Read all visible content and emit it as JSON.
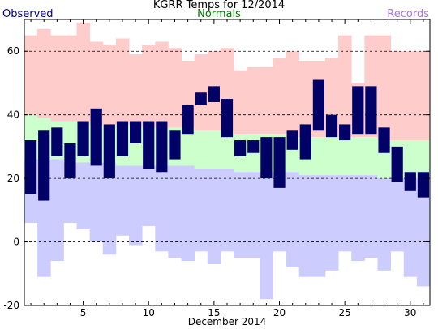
{
  "chart_data": {
    "type": "floating-bar",
    "title": "KGRR Temps for 12/2014",
    "xlabel": "December 2014",
    "ylabel": "",
    "xlim": [
      1,
      31
    ],
    "ylim": [
      -20,
      70
    ],
    "x_ticks": [
      5,
      10,
      15,
      20,
      25,
      30
    ],
    "y_ticks": [
      -20,
      0,
      20,
      40,
      60
    ],
    "grid": "dashed horizontal lines at y ticks",
    "legend": {
      "placement": "top",
      "entries": [
        {
          "label": "Observed",
          "color": "#000080",
          "position": "left"
        },
        {
          "label": "Normals",
          "color": "#007700",
          "position": "center"
        },
        {
          "label": "Records",
          "color": "#aa77dd",
          "position": "right"
        }
      ]
    },
    "days": [
      1,
      2,
      3,
      4,
      5,
      6,
      7,
      8,
      9,
      10,
      11,
      12,
      13,
      14,
      15,
      16,
      17,
      18,
      19,
      20,
      21,
      22,
      23,
      24,
      25,
      26,
      27,
      28,
      29,
      30,
      31
    ],
    "record_high": [
      65,
      67,
      65,
      65,
      69,
      63,
      62,
      64,
      59,
      62,
      63,
      61,
      57,
      59,
      60,
      61,
      54,
      55,
      55,
      58,
      60,
      57,
      57,
      58,
      65,
      50,
      65,
      65,
      60,
      60,
      60
    ],
    "normal_high": [
      40,
      39,
      38,
      38,
      38,
      37,
      37,
      37,
      37,
      36,
      36,
      36,
      36,
      35,
      35,
      35,
      34,
      34,
      34,
      34,
      33,
      33,
      33,
      33,
      33,
      33,
      33,
      32,
      32,
      32,
      32
    ],
    "normal_low": [
      26,
      26,
      26,
      25,
      25,
      25,
      25,
      24,
      24,
      24,
      24,
      24,
      24,
      23,
      23,
      23,
      22,
      22,
      22,
      22,
      22,
      21,
      21,
      21,
      21,
      21,
      21,
      20,
      20,
      20,
      20
    ],
    "record_low": [
      6,
      -11,
      -6,
      6,
      4,
      0,
      -4,
      2,
      -1,
      5,
      -3,
      -5,
      -6,
      -3,
      -7,
      -3,
      -5,
      -5,
      -18,
      -3,
      -8,
      -11,
      -11,
      -9,
      -3,
      -6,
      -5,
      -9,
      -3,
      -11,
      -14
    ],
    "observed_high": [
      32,
      35,
      36,
      31,
      38,
      42,
      37,
      38,
      38,
      38,
      38,
      35,
      43,
      47,
      49,
      45,
      32,
      32,
      33,
      33,
      35,
      37,
      51,
      40,
      37,
      49,
      49,
      36,
      30,
      22,
      22
    ],
    "observed_low": [
      15,
      13,
      27,
      20,
      27,
      24,
      20,
      27,
      31,
      23,
      22,
      26,
      34,
      43,
      44,
      33,
      27,
      28,
      20,
      17,
      29,
      26,
      35,
      33,
      32,
      34,
      34,
      28,
      19,
      16,
      14
    ],
    "colors": {
      "records": "#ffcccc",
      "normals": "#ccffcc",
      "record_lows": "#ccccff",
      "observed": "#000066",
      "grid": "#000000",
      "axis": "#000000"
    }
  },
  "legend_colors": {
    "observed": "#000080",
    "normals": "#007700",
    "records": "#aa77dd"
  }
}
